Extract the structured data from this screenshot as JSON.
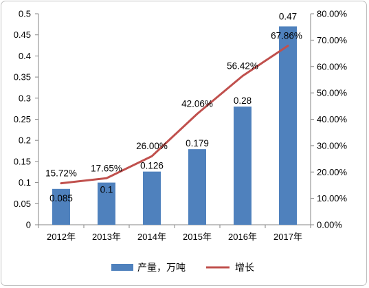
{
  "chart_data": {
    "type": "bar",
    "title": "",
    "xlabel": "",
    "ylabel": "",
    "categories": [
      "2012年",
      "2013年",
      "2014年",
      "2015年",
      "2016年",
      "2017年"
    ],
    "series": [
      {
        "name": "产量，万吨",
        "type": "bar",
        "axis": "left",
        "color": "#4f81bd",
        "values": [
          0.085,
          0.1,
          0.126,
          0.179,
          0.28,
          0.47
        ],
        "labels": [
          "0.085",
          "0.1",
          "0.126",
          "0.179",
          "0.28",
          "0.47"
        ]
      },
      {
        "name": "增长",
        "type": "line",
        "axis": "right",
        "color": "#c0504d",
        "values": [
          15.72,
          17.65,
          26.0,
          42.06,
          56.42,
          67.86
        ],
        "labels": [
          "15.72%",
          "17.65%",
          "26.00%",
          "42.06%",
          "56.42%",
          "67.86%"
        ]
      }
    ],
    "ylim": [
      0,
      0.5
    ],
    "y_ticks": [
      "0",
      "0.05",
      "0.1",
      "0.15",
      "0.2",
      "0.25",
      "0.3",
      "0.35",
      "0.4",
      "0.45",
      "0.5"
    ],
    "y2lim": [
      0,
      80
    ],
    "y2_ticks": [
      "0.00%",
      "10.00%",
      "20.00%",
      "30.00%",
      "40.00%",
      "50.00%",
      "60.00%",
      "70.00%",
      "80.00%"
    ],
    "grid": false,
    "legend_position": "bottom"
  }
}
